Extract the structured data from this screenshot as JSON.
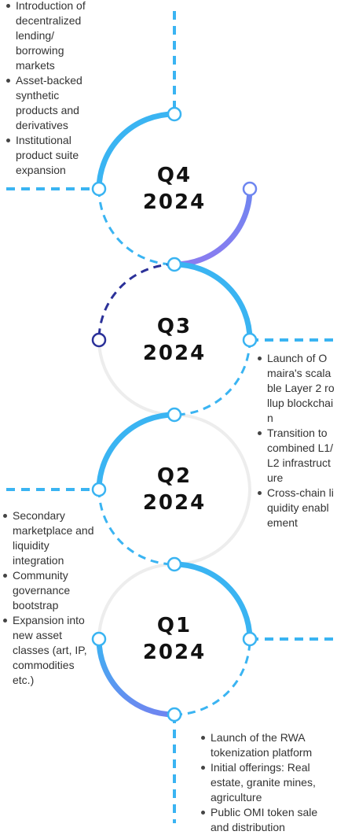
{
  "colors": {
    "blue": "#3AB4F2",
    "indigo": "#6E86F0",
    "navy": "#2B3199",
    "track": "#EDEDED",
    "node_fill": "#ffffff"
  },
  "quarters": [
    {
      "id": "q4",
      "quarter": "Q4",
      "year": "2024",
      "items": [
        "Introduction of decentralized lending/ borrowing markets",
        "Asset-backed synthetic products and derivatives",
        "Institutional product suite expansion"
      ]
    },
    {
      "id": "q3",
      "quarter": "Q3",
      "year": "2024",
      "items": [
        "Launch of Omaira's scalable Layer 2 rollup blockchain",
        "Transition to combined L1/L2 infrastructure",
        "Cross-chain liquidity enablement"
      ]
    },
    {
      "id": "q2",
      "quarter": "Q2",
      "year": "2024",
      "items": [
        "Secondary marketplace and liquidity integration",
        "Community governance bootstrap",
        "Expansion into new asset classes (art, IP, commodities etc.)"
      ]
    },
    {
      "id": "q1",
      "quarter": "Q1",
      "year": "2024",
      "items": [
        "Launch of the RWA tokenization platform",
        "Initial offerings: Real estate, granite mines, agriculture",
        "Public OMI token sale and distribution"
      ]
    }
  ]
}
